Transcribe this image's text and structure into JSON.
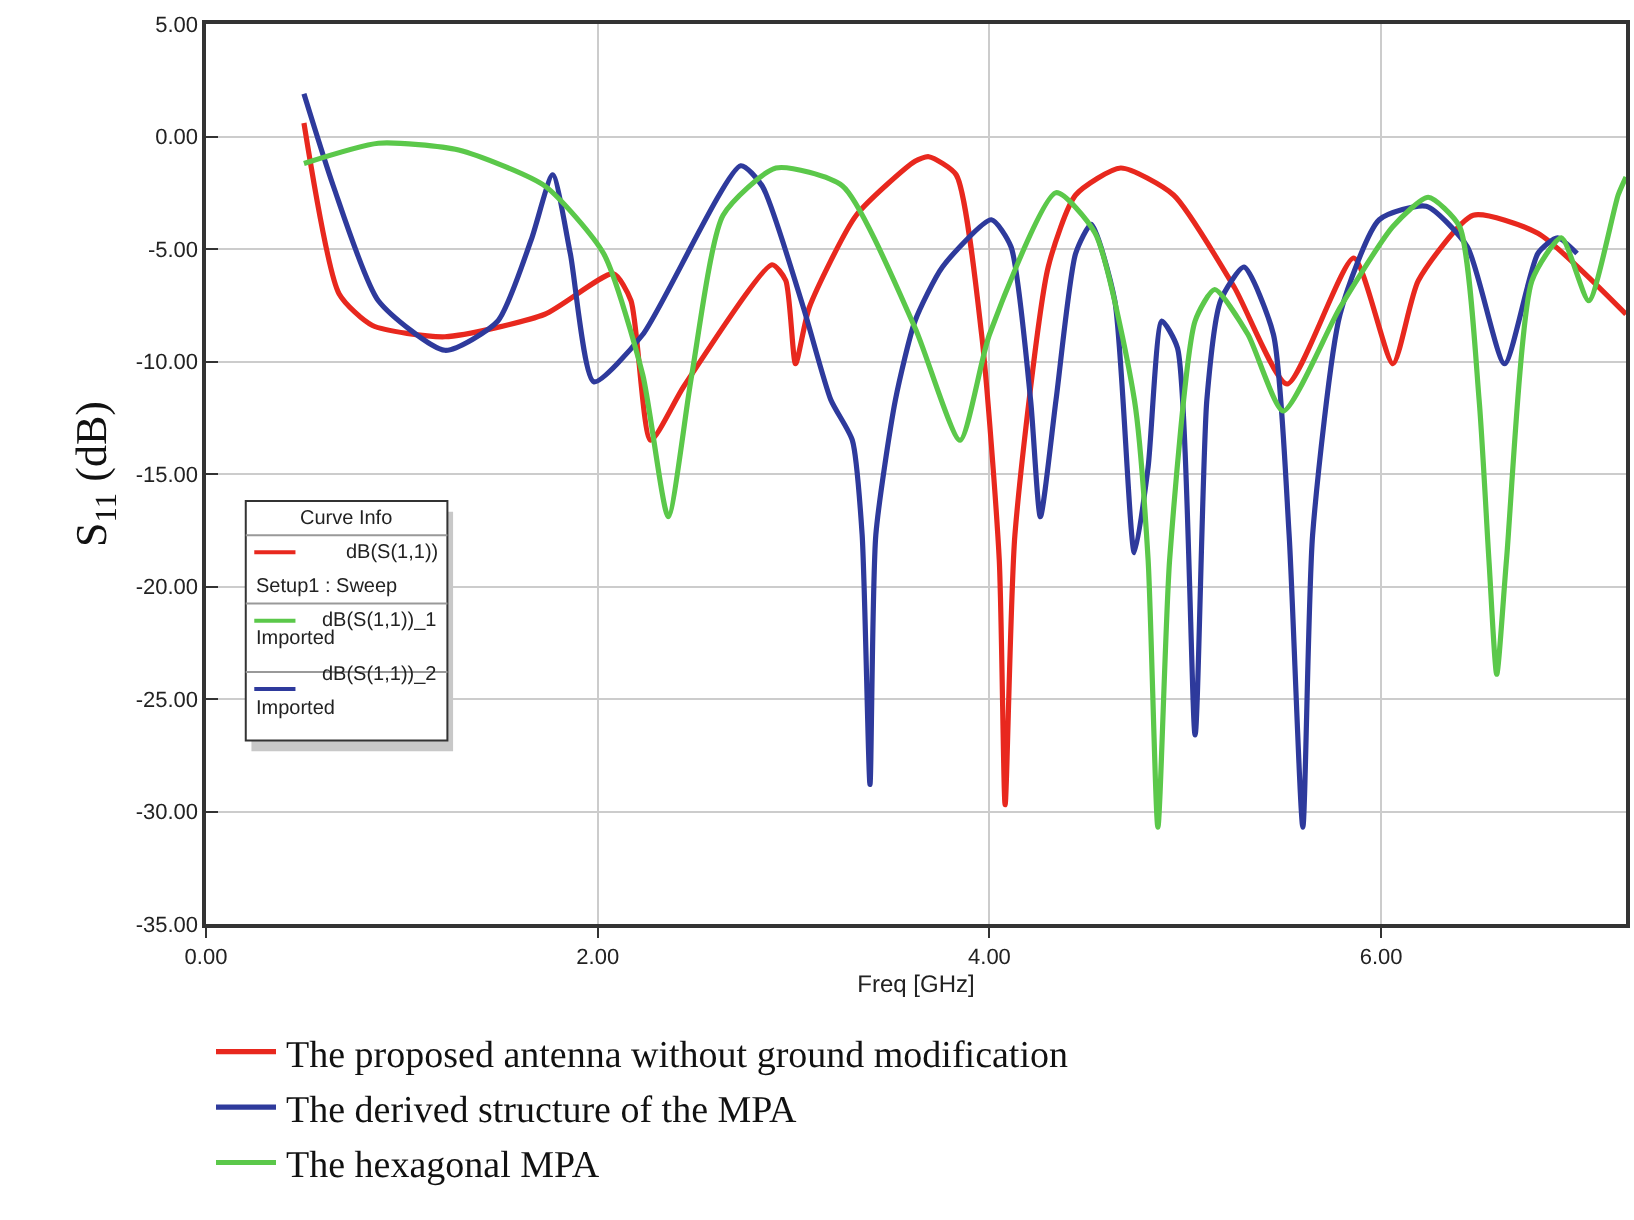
{
  "chart_data": {
    "type": "line",
    "xlabel": "Freq [GHz]",
    "ylabel": "S$_{11}$ (dB)",
    "xlim": [
      0,
      7.25
    ],
    "ylim": [
      -35,
      5
    ],
    "xticks": [
      {
        "value": 0,
        "label": "0.00"
      },
      {
        "value": 2,
        "label": "2.00"
      },
      {
        "value": 4,
        "label": "4.00"
      },
      {
        "value": 6,
        "label": "6.00"
      }
    ],
    "yticks": [
      {
        "value": 5,
        "label": "5.00"
      },
      {
        "value": 0,
        "label": "0.00"
      },
      {
        "value": -5,
        "label": "-5.00"
      },
      {
        "value": -10,
        "label": "-10.00"
      },
      {
        "value": -15,
        "label": "-15.00"
      },
      {
        "value": -20,
        "label": "-20.00"
      },
      {
        "value": -25,
        "label": "-25.00"
      },
      {
        "value": -30,
        "label": "-30.00"
      },
      {
        "value": -35,
        "label": "-35.00"
      }
    ],
    "grid": true,
    "legend": "bottom",
    "marker": "none",
    "line_style": "solid",
    "annotations": [
      "Curve Info",
      "dB(S(1,1))",
      "Setup1 : Sweep",
      "dB(S(1,1))_1",
      "Imported",
      "dB(S(1,1))_2",
      "Imported"
    ],
    "series": [
      {
        "name": "The proposed antenna without ground modification",
        "color": "#e8281e",
        "x": [
          0.5,
          0.68,
          0.85,
          1.22,
          1.73,
          2.08,
          2.17,
          2.27,
          2.44,
          2.89,
          2.96,
          3.01,
          3.08,
          3.32,
          3.62,
          3.69,
          3.83,
          3.96,
          4.05,
          4.08,
          4.13,
          4.3,
          4.44,
          4.67,
          4.94,
          5.25,
          5.52,
          5.86,
          6.06,
          6.19,
          6.47,
          6.8,
          7.25
        ],
        "values": [
          0.6,
          -7.0,
          -8.4,
          -8.9,
          -7.9,
          -6.1,
          -7.3,
          -13.5,
          -11.1,
          -5.7,
          -6.4,
          -10.1,
          -7.6,
          -3.5,
          -1.1,
          -0.9,
          -1.7,
          -8.8,
          -18.8,
          -29.7,
          -17.7,
          -5.8,
          -2.6,
          -1.4,
          -2.6,
          -6.7,
          -11.0,
          -5.4,
          -10.1,
          -6.4,
          -3.5,
          -4.3,
          -7.9
        ]
      },
      {
        "name": "The derived structure of the MPA",
        "color": "#2e3a9c",
        "x": [
          0.5,
          0.65,
          0.88,
          1.22,
          1.49,
          1.66,
          1.77,
          1.86,
          1.98,
          2.23,
          2.73,
          2.84,
          3.05,
          3.19,
          3.3,
          3.35,
          3.39,
          3.42,
          3.52,
          3.62,
          3.76,
          4.01,
          4.11,
          4.21,
          4.26,
          4.34,
          4.44,
          4.52,
          4.64,
          4.74,
          4.81,
          4.88,
          4.96,
          5.05,
          5.11,
          5.18,
          5.3,
          5.45,
          5.53,
          5.6,
          5.65,
          5.79,
          5.99,
          6.23,
          6.44,
          6.63,
          6.8,
          6.9,
          7.0
        ],
        "values": [
          1.9,
          -2.2,
          -7.3,
          -9.5,
          -8.2,
          -4.6,
          -1.7,
          -5.2,
          -10.9,
          -8.8,
          -1.3,
          -2.2,
          -7.6,
          -11.7,
          -13.5,
          -17.7,
          -28.8,
          -17.7,
          -11.7,
          -8.2,
          -5.8,
          -3.7,
          -4.9,
          -11.7,
          -16.9,
          -11.7,
          -5.2,
          -3.9,
          -7.3,
          -18.5,
          -14.7,
          -8.2,
          -9.4,
          -26.6,
          -11.7,
          -7.3,
          -5.8,
          -8.8,
          -17.7,
          -30.7,
          -17.7,
          -7.9,
          -3.7,
          -3.1,
          -4.9,
          -10.1,
          -5.2,
          -4.5,
          -5.2
        ]
      },
      {
        "name": "The hexagonal MPA",
        "color": "#5bc84a",
        "x": [
          0.5,
          0.88,
          1.29,
          1.73,
          2.03,
          2.23,
          2.36,
          2.48,
          2.64,
          2.91,
          3.25,
          3.62,
          3.85,
          4.0,
          4.34,
          4.54,
          4.74,
          4.81,
          4.86,
          4.92,
          5.05,
          5.15,
          5.32,
          5.5,
          5.79,
          6.06,
          6.24,
          6.4,
          6.5,
          6.55,
          6.59,
          6.64,
          6.77,
          6.92,
          7.06,
          7.21,
          7.25
        ],
        "values": [
          -1.2,
          -0.3,
          -0.6,
          -2.2,
          -5.2,
          -10.6,
          -16.9,
          -10.6,
          -3.5,
          -1.4,
          -2.2,
          -8.5,
          -13.5,
          -8.8,
          -2.5,
          -4.3,
          -11.7,
          -18.8,
          -30.7,
          -18.8,
          -8.2,
          -6.8,
          -8.8,
          -12.2,
          -7.6,
          -4.0,
          -2.7,
          -4.0,
          -11.7,
          -18.8,
          -23.9,
          -18.8,
          -6.4,
          -4.5,
          -7.3,
          -2.6,
          -1.8
        ]
      }
    ]
  }
}
